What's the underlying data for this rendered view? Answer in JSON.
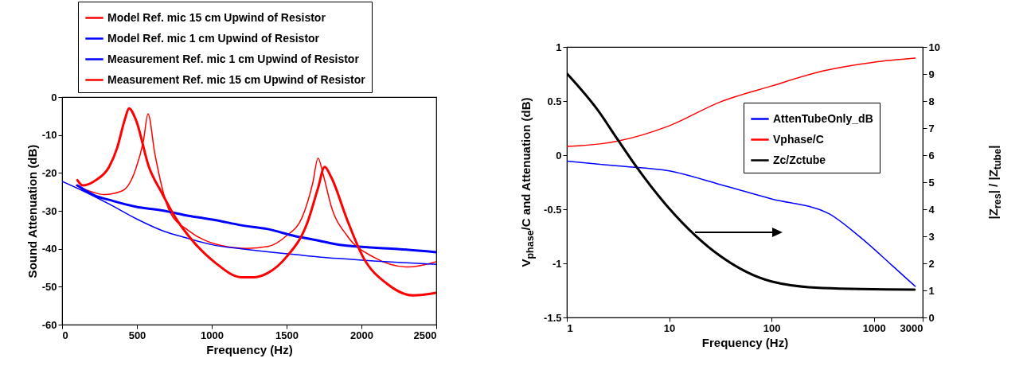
{
  "chart_data": [
    {
      "type": "line",
      "xlabel": "Frequency (Hz)",
      "ylabel": "Sound Attenuation (dB)",
      "xlim": [
        0,
        2500
      ],
      "xticks": [
        0,
        500,
        1000,
        1500,
        2000,
        2500
      ],
      "ylim": [
        -60,
        0
      ],
      "yticks": [
        -60,
        -50,
        -40,
        -30,
        -20,
        -10,
        0
      ],
      "legend": "top",
      "series": [
        {
          "name": "Model Ref. mic 15 cm Upwind of Resistor",
          "color": "#ff0000",
          "x": [
            94,
            200,
            280,
            403,
            491,
            544,
            574,
            620,
            720,
            845,
            1020,
            1233,
            1374,
            1498,
            1604,
            1675,
            1710,
            1745,
            1799,
            1905,
            2081,
            2311,
            2500
          ],
          "values": [
            -23.3,
            -25,
            -25.7,
            -24.7,
            -19.1,
            -11.4,
            -4.4,
            -15,
            -30.3,
            -35.2,
            -38.7,
            -39.9,
            -39.4,
            -36.6,
            -31.7,
            -22.6,
            -16.1,
            -20.5,
            -28.9,
            -36.6,
            -42.2,
            -44.8,
            -43.4
          ]
        },
        {
          "name": "Model Ref. mic 1 cm Upwind of Resistor",
          "color": "#0000ff",
          "x": [
            0,
            138,
            314,
            491,
            668,
            845,
            1021,
            1198,
            1374,
            1551,
            1728,
            1905,
            2081,
            2300,
            2500
          ],
          "values": [
            -22.2,
            -24.7,
            -28.2,
            -32,
            -35.2,
            -37.3,
            -39.1,
            -40,
            -40.8,
            -41.5,
            -42.2,
            -42.7,
            -43.2,
            -43.7,
            -44.1
          ]
        },
        {
          "name": "Measurement Ref. mic 1 cm Upwind of Resistor",
          "color": "#0000ff",
          "x": [
            102,
            226,
            314,
            491,
            668,
            845,
            1021,
            1198,
            1374,
            1551,
            1710,
            1816,
            2081,
            2258,
            2500
          ],
          "values": [
            -23.3,
            -26.1,
            -27.1,
            -28.9,
            -29.9,
            -31.3,
            -32.4,
            -33.8,
            -34.8,
            -36.6,
            -37.8,
            -38.7,
            -39.7,
            -40.1,
            -40.9
          ]
        },
        {
          "name": "Measurement Ref. mic 15 cm Upwind of Resistor",
          "color": "#ff0000",
          "x": [
            102,
            138,
            226,
            314,
            367,
            420,
            447,
            491,
            580,
            668,
            756,
            845,
            1021,
            1198,
            1286,
            1374,
            1498,
            1639,
            1710,
            1754,
            1799,
            1905,
            2011,
            2170,
            2347,
            2500
          ],
          "values": [
            -21.9,
            -23.3,
            -21.9,
            -18.4,
            -13.5,
            -5.8,
            -3,
            -5.8,
            -18.4,
            -25.4,
            -31.7,
            -36.6,
            -43.6,
            -47.5,
            -47.5,
            -46.4,
            -42.2,
            -33.1,
            -24,
            -18.4,
            -21.2,
            -32.4,
            -42.2,
            -49.2,
            -52.3,
            -51.6
          ]
        }
      ]
    },
    {
      "type": "line",
      "xlabel": "Frequency (Hz)",
      "ylabel": "V$_{phase}$/C and Attenuation (dB)",
      "y2label": "|Z$_{res}$| / |Z$_{tube}$|",
      "log": "x",
      "xlim": [
        1,
        3000
      ],
      "xticks": [
        1,
        10,
        100,
        1000,
        3000
      ],
      "ylim": [
        -1.5,
        1
      ],
      "yticks": [
        -1.5,
        -1,
        -0.5,
        0,
        0.5,
        1
      ],
      "y2lim": [
        0,
        10
      ],
      "y2ticks": [
        0,
        1,
        2,
        3,
        4,
        5,
        6,
        7,
        8,
        9,
        10
      ],
      "legend": "top right",
      "series": [
        {
          "name": "AttenTubeOnly_dB",
          "color": "#0000ff",
          "x": [
            1,
            3.16,
            10,
            31.6,
            100,
            355,
            733,
            1515,
            2535
          ],
          "values": [
            -0.055,
            -0.1,
            -0.146,
            -0.272,
            -0.404,
            -0.536,
            -0.757,
            -1.021,
            -1.212
          ]
        },
        {
          "name": "Vphase/C",
          "color": "#ff0000",
          "x": [
            1,
            3.16,
            10,
            31.6,
            100,
            316,
            1000,
            2535
          ],
          "values": [
            0.08,
            0.13,
            0.271,
            0.492,
            0.639,
            0.777,
            0.859,
            0.897
          ]
        },
        {
          "name": "Zc/Zctube",
          "color": "#000000",
          "axis": "y2",
          "x": [
            1,
            2,
            3.16,
            4.8,
            10,
            31.6,
            100,
            316,
            2500
          ],
          "values": [
            9.02,
            7.67,
            6.56,
            5.56,
            4.03,
            2.27,
            1.33,
            1.09,
            1.03
          ]
        }
      ]
    }
  ]
}
